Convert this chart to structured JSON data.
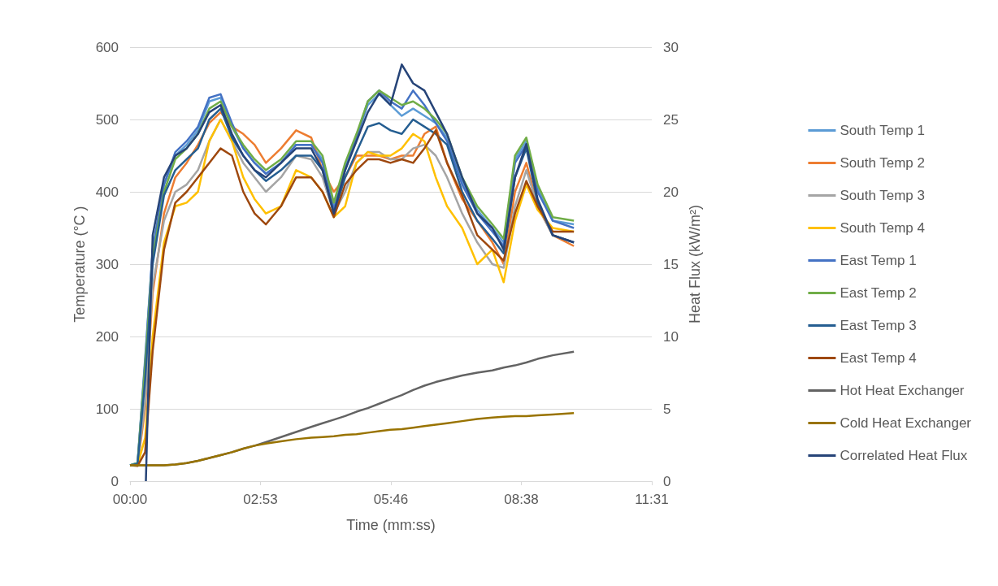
{
  "chart_data": {
    "type": "line",
    "xlabel": "Time (mm:ss)",
    "ylabel": "Temperature (°C )",
    "y2label": "Heat Flux (kW/m²)",
    "x": [
      0,
      10,
      20,
      30,
      45,
      60,
      75,
      90,
      105,
      120,
      135,
      150,
      165,
      180,
      200,
      220,
      240,
      255,
      270,
      285,
      300,
      315,
      330,
      345,
      360,
      375,
      390,
      405,
      420,
      440,
      460,
      480,
      495,
      510,
      525,
      540,
      560,
      588
    ],
    "xlim": [
      0,
      691.2
    ],
    "xticks": [
      {
        "value": 0,
        "label": "00:00"
      },
      {
        "value": 172.8,
        "label": "02:53"
      },
      {
        "value": 345.6,
        "label": "05:46"
      },
      {
        "value": 518.4,
        "label": "08:38"
      },
      {
        "value": 691.2,
        "label": "11:31"
      }
    ],
    "ylim": [
      0,
      600
    ],
    "yticks": [
      0,
      100,
      200,
      300,
      400,
      500,
      600
    ],
    "y2lim": [
      0,
      30
    ],
    "y2ticks": [
      0,
      5,
      10,
      15,
      20,
      25,
      30
    ],
    "grid": "y",
    "legend": "right",
    "marker": "none",
    "series": [
      {
        "name": "South Temp 1",
        "color": "#5b9bd5",
        "values": [
          22,
          25,
          170,
          320,
          410,
          450,
          465,
          485,
          525,
          530,
          490,
          460,
          440,
          425,
          440,
          465,
          465,
          445,
          380,
          435,
          475,
          520,
          535,
          520,
          505,
          515,
          505,
          495,
          475,
          415,
          375,
          350,
          330,
          445,
          470,
          405,
          360,
          355
        ]
      },
      {
        "name": "South Temp 2",
        "color": "#ed7d31",
        "values": [
          22,
          22,
          100,
          260,
          370,
          420,
          440,
          465,
          495,
          510,
          490,
          480,
          465,
          440,
          460,
          485,
          475,
          430,
          400,
          420,
          450,
          450,
          450,
          445,
          450,
          450,
          480,
          490,
          440,
          390,
          360,
          330,
          300,
          400,
          440,
          380,
          340,
          325
        ]
      },
      {
        "name": "South Temp 3",
        "color": "#a5a5a5",
        "values": [
          22,
          22,
          110,
          270,
          360,
          400,
          410,
          430,
          470,
          500,
          470,
          440,
          420,
          400,
          420,
          450,
          445,
          420,
          370,
          400,
          440,
          455,
          455,
          445,
          445,
          460,
          465,
          450,
          420,
          370,
          330,
          300,
          295,
          380,
          430,
          380,
          340,
          330
        ]
      },
      {
        "name": "South Temp 4",
        "color": "#ffc000",
        "values": [
          22,
          22,
          60,
          200,
          330,
          380,
          385,
          400,
          470,
          500,
          470,
          420,
          390,
          370,
          380,
          430,
          420,
          400,
          365,
          380,
          440,
          455,
          450,
          450,
          460,
          480,
          470,
          420,
          380,
          350,
          300,
          320,
          275,
          360,
          410,
          375,
          350,
          345
        ]
      },
      {
        "name": "East Temp 1",
        "color": "#4472c4",
        "values": [
          22,
          25,
          165,
          320,
          410,
          455,
          470,
          490,
          530,
          535,
          495,
          460,
          440,
          425,
          440,
          465,
          465,
          440,
          375,
          430,
          475,
          525,
          540,
          525,
          515,
          540,
          520,
          495,
          470,
          410,
          370,
          345,
          325,
          440,
          465,
          400,
          360,
          350
        ]
      },
      {
        "name": "East Temp 2",
        "color": "#70ad47",
        "values": [
          22,
          25,
          160,
          310,
          400,
          445,
          460,
          480,
          515,
          525,
          490,
          465,
          445,
          430,
          445,
          470,
          470,
          450,
          385,
          440,
          480,
          525,
          540,
          530,
          520,
          525,
          515,
          500,
          480,
          420,
          380,
          355,
          335,
          450,
          475,
          410,
          365,
          360
        ]
      },
      {
        "name": "East Temp 3",
        "color": "#255e91",
        "values": [
          22,
          24,
          140,
          300,
          395,
          430,
          445,
          460,
          500,
          515,
          475,
          450,
          430,
          415,
          430,
          450,
          450,
          430,
          370,
          420,
          455,
          490,
          495,
          485,
          480,
          500,
          490,
          480,
          465,
          400,
          360,
          335,
          315,
          420,
          460,
          385,
          340,
          330
        ]
      },
      {
        "name": "East Temp 4",
        "color": "#9e480e",
        "values": [
          22,
          21,
          40,
          180,
          320,
          385,
          400,
          420,
          440,
          460,
          450,
          400,
          370,
          355,
          380,
          420,
          420,
          400,
          365,
          410,
          430,
          445,
          445,
          440,
          445,
          440,
          460,
          485,
          440,
          395,
          340,
          320,
          305,
          370,
          415,
          380,
          345,
          345
        ]
      },
      {
        "name": "Hot Heat Exchanger",
        "color": "#636363",
        "values": [
          22,
          22,
          22,
          22,
          22,
          23,
          25,
          28,
          32,
          36,
          40,
          45,
          49,
          54,
          61,
          68,
          75,
          80,
          85,
          90,
          96,
          101,
          107,
          113,
          119,
          126,
          132,
          137,
          141,
          146,
          150,
          153,
          157,
          160,
          164,
          169,
          174,
          179
        ]
      },
      {
        "name": "Cold Heat Exchanger",
        "color": "#997300",
        "values": [
          22,
          22,
          22,
          22,
          22,
          23,
          25,
          28,
          32,
          36,
          40,
          45,
          49,
          52,
          55,
          58,
          60,
          61,
          62,
          64,
          65,
          67,
          69,
          71,
          72,
          74,
          76,
          78,
          80,
          83,
          86,
          88,
          89,
          90,
          90,
          91,
          92,
          94
        ]
      },
      {
        "name": "Correlated Heat Flux",
        "color": "#264478",
        "axis": "y2",
        "x": [
          21,
          26,
          30,
          45,
          60,
          75,
          90,
          105,
          120,
          135,
          150,
          165,
          180,
          200,
          220,
          240,
          255,
          270,
          285,
          300,
          315,
          330,
          345,
          360,
          375,
          390,
          405,
          420,
          440,
          460,
          480,
          495,
          510,
          525,
          540,
          560,
          588
        ],
        "values": [
          0,
          10,
          17,
          21,
          22.5,
          23,
          24,
          25.5,
          26,
          24,
          22.5,
          21.5,
          21,
          22,
          23,
          23,
          21.5,
          18.5,
          21.5,
          23.5,
          25.5,
          26.8,
          26,
          28.8,
          27.5,
          27,
          25.5,
          24,
          21,
          18.5,
          17.5,
          16,
          21,
          23.3,
          19.5,
          17,
          16.5
        ]
      }
    ]
  }
}
